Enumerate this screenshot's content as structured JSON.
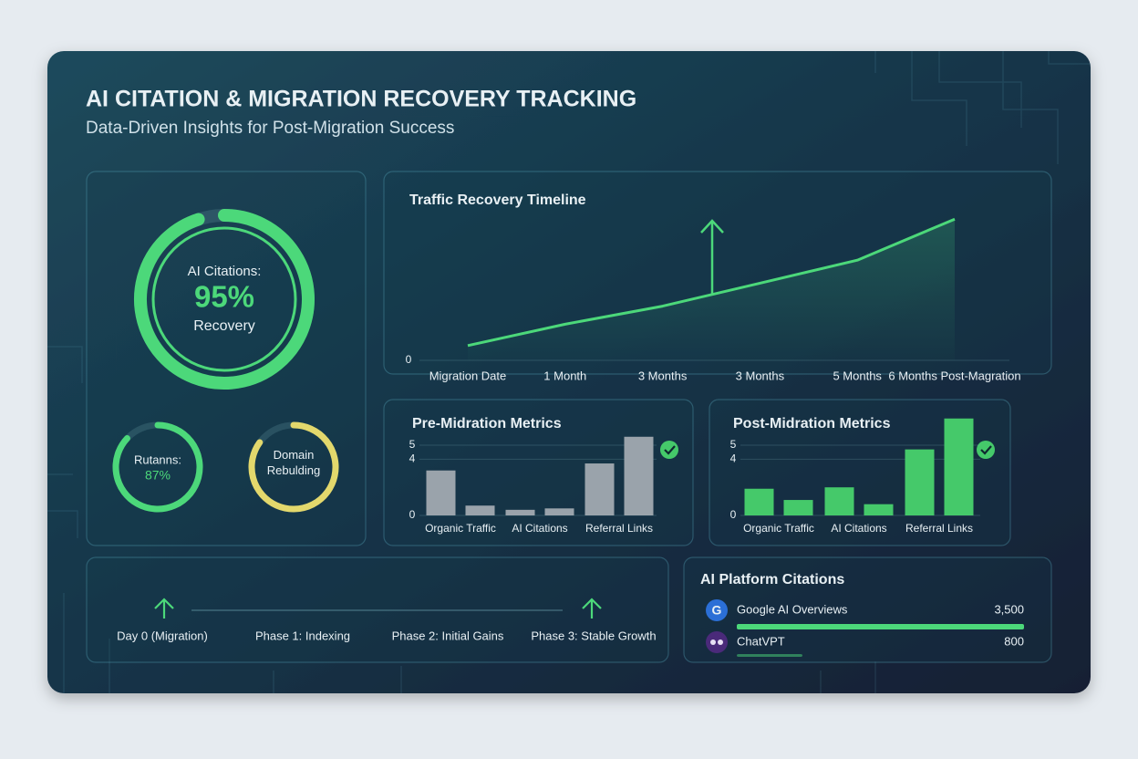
{
  "header": {
    "title": "AI CITATION & MIGRATION RECOVERY TRACKING",
    "subtitle": "Data-Driven Insights for Post-Migration Success"
  },
  "chart_data": [
    {
      "type": "gauge",
      "title": "AI Citations:",
      "subtitle": "Recovery",
      "values": [
        95
      ],
      "value_labels": [
        "95%"
      ],
      "ylim": [
        0,
        100
      ],
      "color": "#4cd87a"
    },
    {
      "type": "gauge",
      "title": "Rutanns:",
      "values": [
        87
      ],
      "value_labels": [
        "87%"
      ],
      "ylim": [
        0,
        100
      ],
      "color": "#4cd87a"
    },
    {
      "type": "gauge",
      "title": "Domain Rebulding",
      "values": [
        85
      ],
      "ylim": [
        0,
        100
      ],
      "color": "#e3d86c"
    },
    {
      "type": "line",
      "title": "Traffic Recovery Timeline",
      "categories": [
        "Migration Date",
        "1 Month",
        "3 Months",
        "3 Months",
        "5 Months",
        "6 Months Post-Magration"
      ],
      "values": [
        9,
        22,
        33,
        47,
        61,
        86
      ],
      "ylim": [
        0,
        100
      ],
      "yticks": [
        0
      ],
      "color": "#4cd87a"
    },
    {
      "type": "bar",
      "title": "Pre-Midration Metrics",
      "categories": [
        "Organic Traffic",
        "AI Citations",
        "Referral Links"
      ],
      "series": [
        {
          "color": "#9aa3ab",
          "values": [
            3.2,
            0.4,
            3.7
          ]
        },
        {
          "color": "#9aa3ab",
          "values": [
            0.7,
            0.5,
            5.6
          ]
        }
      ],
      "ylim": [
        0,
        6
      ],
      "yticks": [
        0,
        4,
        5
      ]
    },
    {
      "type": "bar",
      "title": "Post-Midration Metrics",
      "categories": [
        "Organic Traffic",
        "AI Citations",
        "Referral Links"
      ],
      "series": [
        {
          "color": "#45c96a",
          "values": [
            1.9,
            2.0,
            4.7
          ]
        },
        {
          "color": "#45c96a",
          "values": [
            1.1,
            0.8,
            6.9
          ]
        }
      ],
      "ylim": [
        0,
        7.5
      ],
      "yticks": [
        0,
        4,
        5
      ]
    },
    {
      "type": "hbar",
      "title": "AI Platform Citations",
      "categories": [
        "Google AI Overviews",
        "ChatVPT"
      ],
      "values": [
        3500,
        800
      ],
      "value_labels": [
        "3,500",
        "800"
      ],
      "xlim": [
        0,
        3500
      ],
      "color": "#4cd87a"
    }
  ],
  "timeline": {
    "phases": [
      "Day 0 (Migration)",
      "Phase 1: Indexing",
      "Phase 2: Initial Gains",
      "Phase 3: Stable Growth"
    ]
  }
}
